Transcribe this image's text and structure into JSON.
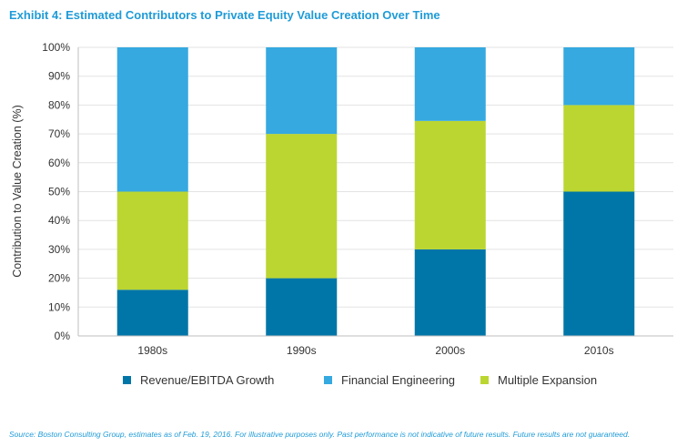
{
  "title": "Exhibit 4: Estimated Contributors to Private Equity Value Creation Over Time",
  "source": "Source: Boston Consulting Group, estimates as of Feb. 19, 2016. For illustrative purposes only. Past performance is not indicative of future results. Future results are not guaranteed.",
  "chart_data": {
    "type": "bar",
    "stacked": true,
    "categories": [
      "1980s",
      "1990s",
      "2000s",
      "2010s"
    ],
    "series": [
      {
        "name": "Revenue/EBITDA Growth",
        "color": "#0076a8",
        "values": [
          16,
          20,
          30,
          50
        ]
      },
      {
        "name": "Multiple Expansion",
        "color": "#bcd631",
        "values": [
          34,
          50,
          44.5,
          30
        ]
      },
      {
        "name": "Financial Engineering",
        "color": "#35a9e0",
        "values": [
          50,
          30,
          25.5,
          20
        ]
      }
    ],
    "legend_order": [
      "Revenue/EBITDA Growth",
      "Financial Engineering",
      "Multiple Expansion"
    ],
    "ylabel": "Contribution to Value Creation (%)",
    "xlabel": "",
    "ylim": [
      0,
      100
    ],
    "yticks": [
      "0%",
      "10%",
      "20%",
      "30%",
      "40%",
      "50%",
      "60%",
      "70%",
      "80%",
      "90%",
      "100%"
    ],
    "grid": true,
    "legend_position": "bottom"
  }
}
